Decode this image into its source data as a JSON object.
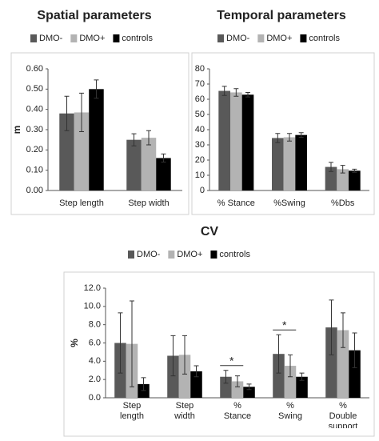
{
  "chart_data": [
    {
      "type": "bar",
      "title": "Spatial parameters",
      "y_label": "m",
      "categories": [
        "Step length",
        "Step width"
      ],
      "series": [
        {
          "name": "DMO-",
          "color": "#595959",
          "values": [
            0.38,
            0.25
          ],
          "errors": [
            0.085,
            0.03
          ]
        },
        {
          "name": "DMO+",
          "color": "#b3b3b3",
          "values": [
            0.385,
            0.26
          ],
          "errors": [
            0.095,
            0.035
          ]
        },
        {
          "name": "controls",
          "color": "#000000",
          "values": [
            0.5,
            0.16
          ],
          "errors": [
            0.045,
            0.02
          ]
        }
      ],
      "ylim": [
        0,
        0.6
      ],
      "yticks": [
        {
          "value": 0,
          "label": "0.00"
        },
        {
          "value": 0.1,
          "label": "0.10"
        },
        {
          "value": 0.2,
          "label": "0.20"
        },
        {
          "value": 0.3,
          "label": "0.30"
        },
        {
          "value": 0.4,
          "label": "0.40"
        },
        {
          "value": 0.5,
          "label": "0.50"
        },
        {
          "value": 0.6,
          "label": "0.60"
        }
      ]
    },
    {
      "type": "bar",
      "title": "Temporal parameters",
      "categories": [
        "% Stance",
        "%Swing",
        "%Dbs"
      ],
      "series": [
        {
          "name": "DMO-",
          "color": "#595959",
          "values": [
            65.5,
            34.5,
            15.5
          ],
          "errors": [
            3,
            3,
            3
          ]
        },
        {
          "name": "DMO+",
          "color": "#b3b3b3",
          "values": [
            64.5,
            35,
            14
          ],
          "errors": [
            2.5,
            2.5,
            2.5
          ]
        },
        {
          "name": "controls",
          "color": "#000000",
          "values": [
            63,
            36.5,
            13
          ],
          "errors": [
            1.5,
            1.5,
            1
          ]
        }
      ],
      "ylim": [
        0,
        80
      ],
      "yticks": [
        0,
        10,
        20,
        30,
        40,
        50,
        60,
        70,
        80
      ]
    },
    {
      "type": "bar",
      "title": "CV",
      "y_label": "%",
      "categories": [
        "Step length",
        "Step width",
        "% Stance",
        "% Swing",
        "% Double support"
      ],
      "series": [
        {
          "name": "DMO-",
          "color": "#595959",
          "values": [
            6.0,
            4.6,
            2.3,
            4.8,
            7.7
          ],
          "errors": [
            3.3,
            2.2,
            0.7,
            2.1,
            3.0
          ]
        },
        {
          "name": "DMO+",
          "color": "#b3b3b3",
          "values": [
            5.9,
            4.7,
            1.8,
            3.5,
            7.4
          ],
          "errors": [
            4.7,
            2.1,
            0.6,
            1.2,
            1.9
          ]
        },
        {
          "name": "controls",
          "color": "#000000",
          "values": [
            1.5,
            2.9,
            1.2,
            2.3,
            5.2
          ],
          "errors": [
            0.7,
            0.6,
            0.3,
            0.4,
            1.9
          ]
        }
      ],
      "ylim": [
        0,
        12
      ],
      "yticks": [
        {
          "value": 0,
          "label": "0.0"
        },
        {
          "value": 2,
          "label": "2.0"
        },
        {
          "value": 4,
          "label": "4.0"
        },
        {
          "value": 6,
          "label": "6.0"
        },
        {
          "value": 8,
          "label": "8.0"
        },
        {
          "value": 10,
          "label": "10.0"
        },
        {
          "value": 12,
          "label": "12.0"
        }
      ],
      "annotations": [
        "*",
        "*"
      ]
    }
  ]
}
